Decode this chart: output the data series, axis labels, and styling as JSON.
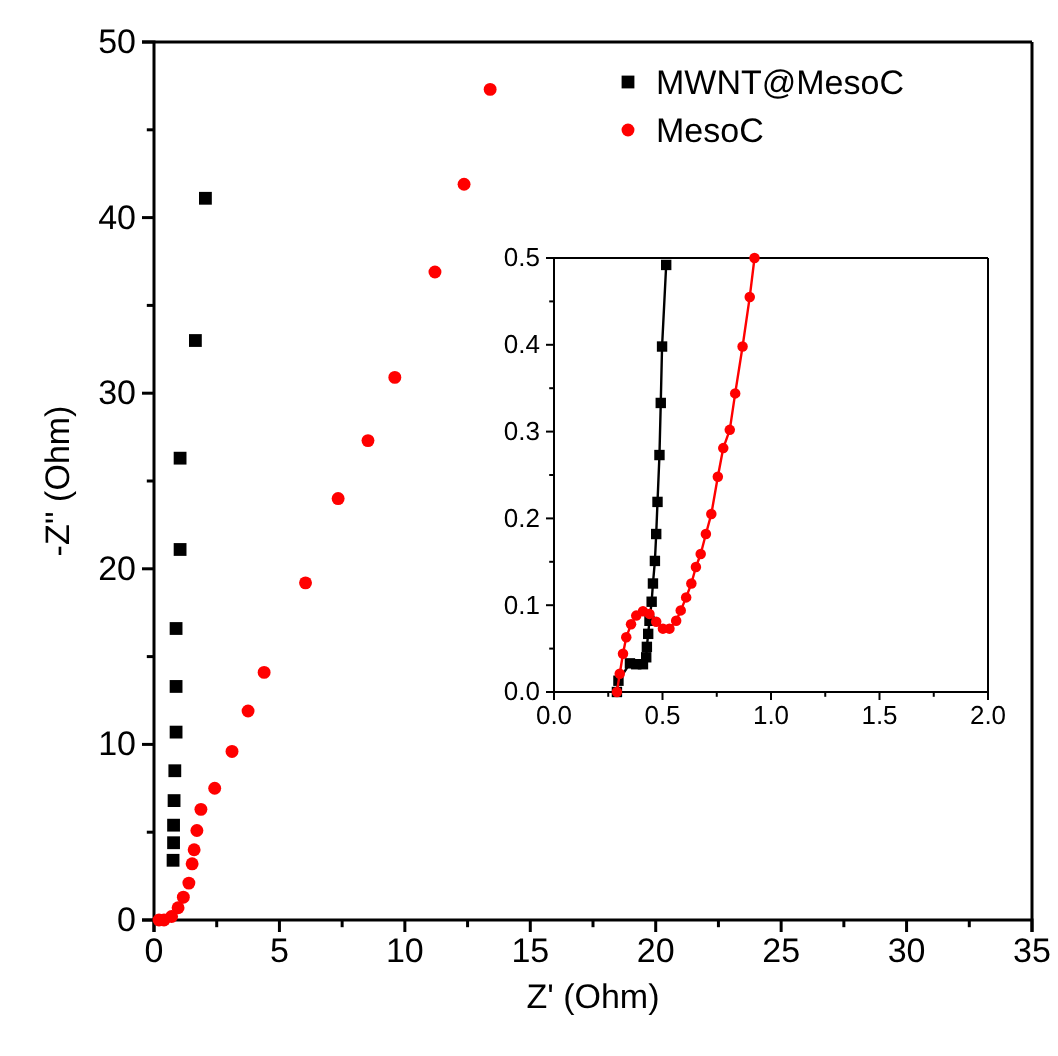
{
  "chart_data": [
    {
      "type": "scatter",
      "xlabel": "Z' (Ohm)",
      "ylabel": "-Z'' (Ohm)",
      "xlim": [
        0,
        35
      ],
      "ylim": [
        0,
        50
      ],
      "xticks": [
        0,
        {
          "value": 2.5,
          "label": null
        },
        5,
        {
          "value": 7.5,
          "label": null
        },
        10,
        {
          "value": 12.5,
          "label": null
        },
        15,
        {
          "value": 17.5,
          "label": null
        },
        20,
        {
          "value": 22.5,
          "label": null
        },
        25,
        {
          "value": 27.5,
          "label": null
        },
        30,
        {
          "value": 32.5,
          "label": null
        },
        35
      ],
      "yticks": [
        0,
        {
          "value": 5,
          "label": null
        },
        10,
        {
          "value": 15,
          "label": null
        },
        20,
        {
          "value": 25,
          "label": null
        },
        30,
        {
          "value": 35,
          "label": null
        },
        40,
        {
          "value": 45,
          "label": null
        },
        50
      ],
      "legend": "top right",
      "grid": false,
      "series": [
        {
          "name": "MWNT@MesoC",
          "color": "#000000",
          "marker": "square",
          "x": [
            0.76,
            0.78,
            0.78,
            0.8,
            0.83,
            0.88,
            0.88,
            0.88,
            1.04,
            1.04,
            1.65,
            2.05
          ],
          "values": [
            3.4,
            4.4,
            5.4,
            6.8,
            8.5,
            10.7,
            13.3,
            16.6,
            21.1,
            26.3,
            33.0,
            41.1
          ]
        },
        {
          "name": "MesoC",
          "color": "#ff0000",
          "marker": "circle",
          "x": [
            0.2,
            0.4,
            0.7,
            0.96,
            1.17,
            1.39,
            1.52,
            1.6,
            1.71,
            1.87,
            2.42,
            3.11,
            3.75,
            4.39,
            6.04,
            7.34,
            8.53,
            9.6,
            11.2,
            12.36,
            13.4
          ],
          "values": [
            0,
            0,
            0.2,
            0.7,
            1.3,
            2.1,
            3.2,
            4.0,
            5.1,
            6.3,
            7.5,
            9.6,
            11.9,
            14.1,
            19.2,
            24.0,
            27.3,
            30.9,
            36.9,
            41.9,
            47.3
          ]
        }
      ]
    },
    {
      "type": "line",
      "xlim": [
        0,
        2
      ],
      "ylim": [
        0,
        0.5
      ],
      "xticks": [
        {
          "value": 0,
          "label": "0.0"
        },
        {
          "value": 0.25,
          "label": null
        },
        0.5,
        {
          "value": 0.75,
          "label": null
        },
        {
          "value": 1,
          "label": "1.0"
        },
        {
          "value": 1.25,
          "label": null
        },
        1.5,
        {
          "value": 1.75,
          "label": null
        },
        {
          "value": 2,
          "label": "2.0"
        }
      ],
      "yticks": [
        {
          "value": 0,
          "label": "0.0"
        },
        {
          "value": 0.05,
          "label": null
        },
        0.1,
        {
          "value": 0.15,
          "label": null
        },
        0.2,
        {
          "value": 0.25,
          "label": null
        },
        0.3,
        {
          "value": 0.35,
          "label": null
        },
        0.4,
        {
          "value": 0.45,
          "label": null
        },
        0.5
      ],
      "grid": false,
      "legend": false,
      "line_style": "solid",
      "series": [
        {
          "color": "#000000",
          "marker": "square",
          "x": [
            0.29,
            0.297,
            0.35,
            0.379,
            0.41,
            0.425,
            0.428,
            0.434,
            0.44,
            0.45,
            0.456,
            0.465,
            0.471,
            0.477,
            0.486,
            0.492,
            0.498,
            0.517
          ],
          "values": [
            0,
            0.013,
            0.033,
            0.032,
            0.032,
            0.04,
            0.052,
            0.067,
            0.082,
            0.104,
            0.125,
            0.151,
            0.182,
            0.219,
            0.273,
            0.333,
            0.398,
            0.492
          ]
        },
        {
          "color": "#ff0000",
          "marker": "circle",
          "x": [
            0.29,
            0.303,
            0.318,
            0.333,
            0.355,
            0.379,
            0.41,
            0.44,
            0.471,
            0.502,
            0.532,
            0.563,
            0.584,
            0.609,
            0.633,
            0.654,
            0.676,
            0.7,
            0.725,
            0.755,
            0.78,
            0.81,
            0.835,
            0.869,
            0.902,
            0.924
          ],
          "values": [
            0,
            0.021,
            0.044,
            0.063,
            0.078,
            0.088,
            0.093,
            0.09,
            0.081,
            0.073,
            0.073,
            0.082,
            0.094,
            0.109,
            0.125,
            0.144,
            0.159,
            0.182,
            0.205,
            0.248,
            0.281,
            0.302,
            0.344,
            0.398,
            0.455,
            0.5
          ]
        }
      ]
    }
  ]
}
